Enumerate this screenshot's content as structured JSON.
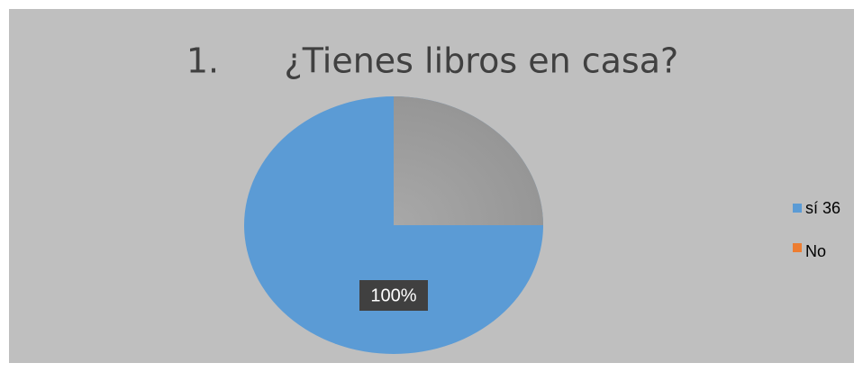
{
  "chart_data": {
    "type": "pie",
    "title": "1.      ¿Tienes libros en casa?",
    "categories": [
      "sí 36",
      "No"
    ],
    "values": [
      100,
      0
    ],
    "value_labels": [
      "100%",
      null
    ],
    "colors": [
      "#5b9bd5",
      "#ed7d31"
    ],
    "legend": "right"
  }
}
